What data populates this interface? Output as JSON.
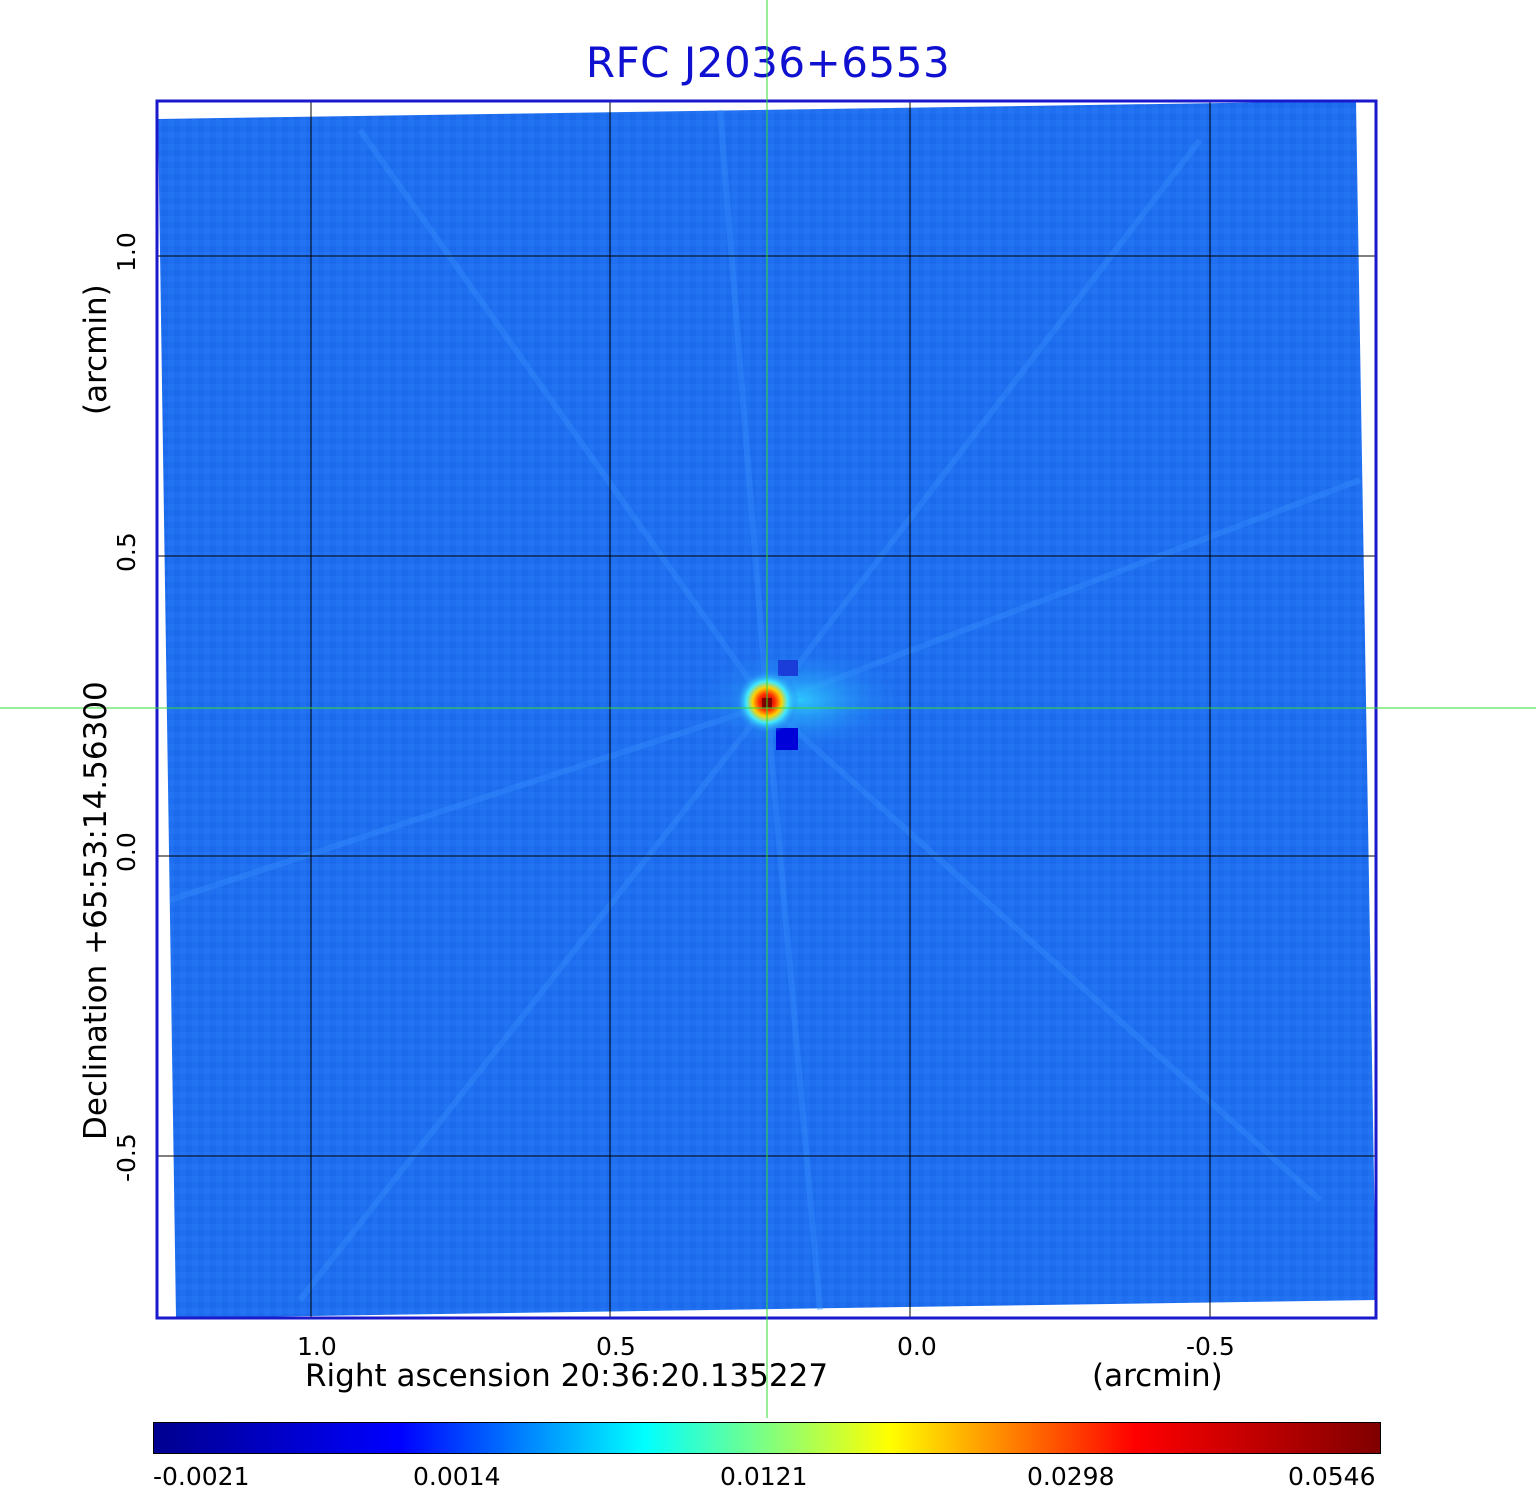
{
  "title": "RFC J2036+6553",
  "axes": {
    "x_label": "Right ascension  20:36:20.135227",
    "x_unit": "(arcmin)",
    "y_label": "Declination  +65:53:14.56300",
    "y_unit": "(arcmin)",
    "x_ticks": [
      "1.0",
      "0.5",
      "0.0",
      "-0.5"
    ],
    "y_ticks": [
      "1.0",
      "0.5",
      "0.0",
      "-0.5"
    ]
  },
  "colorbar": {
    "ticks": [
      "-0.0021",
      "0.0014",
      "0.0121",
      "0.0298",
      "0.0546"
    ],
    "colormap": [
      "#00008f",
      "#0000ff",
      "#00ffff",
      "#ffff00",
      "#ff0000",
      "#800000"
    ]
  },
  "colors": {
    "background_field": "#1f6ff0",
    "frame": "#1a1acc",
    "grid": "#000000",
    "crosshair": "#33dd33",
    "title": "#1010d0"
  }
}
